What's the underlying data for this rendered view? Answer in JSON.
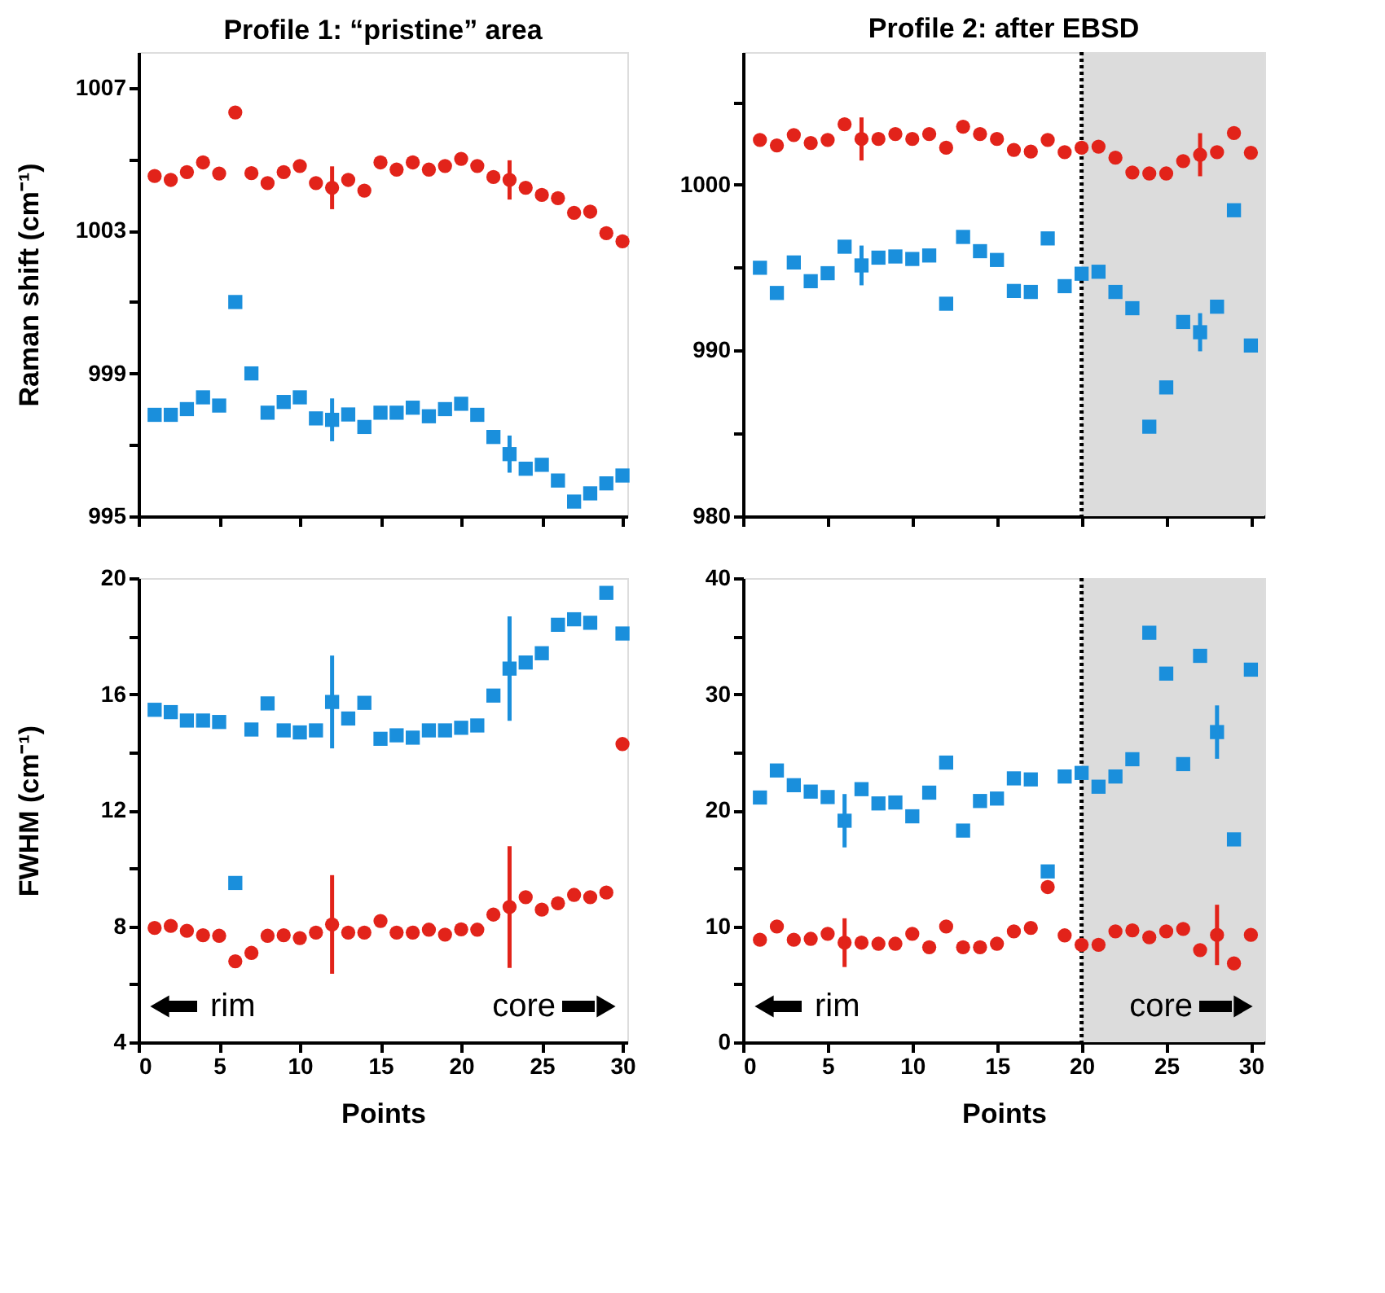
{
  "chart_data": [
    {
      "type": "scatter",
      "title": "Profile 1: “pristine” area",
      "ylabel": "Raman shift (cm⁻¹)",
      "x": [
        1,
        2,
        3,
        4,
        5,
        6,
        7,
        8,
        9,
        10,
        11,
        12,
        13,
        14,
        15,
        16,
        17,
        18,
        19,
        20,
        21,
        22,
        23,
        24,
        25,
        26,
        27,
        28,
        29,
        30
      ],
      "series": [
        {
          "color": "#e2231a",
          "marker": "circle",
          "values": [
            1004.53,
            1004.42,
            1004.64,
            1004.91,
            1004.6,
            1006.31,
            1004.61,
            1004.33,
            1004.64,
            1004.81,
            1004.33,
            1004.2,
            1004.42,
            1004.12,
            1004.91,
            1004.71,
            1004.91,
            1004.71,
            1004.81,
            1005.01,
            1004.81,
            1004.5,
            1004.42,
            1004.2,
            1004.0,
            1003.91,
            1003.5,
            1003.53,
            1002.93,
            1002.7
          ],
          "errors": [
            null,
            null,
            null,
            null,
            null,
            null,
            null,
            null,
            null,
            null,
            null,
            0.6,
            null,
            null,
            null,
            null,
            null,
            null,
            null,
            null,
            null,
            null,
            0.55,
            null,
            null,
            null,
            null,
            null,
            null,
            null
          ]
        },
        {
          "color": "#1a8fdc",
          "marker": "square",
          "values": [
            997.84,
            997.84,
            998.0,
            998.33,
            998.1,
            1001.0,
            999.0,
            997.9,
            998.2,
            998.33,
            997.74,
            997.7,
            997.85,
            997.5,
            997.9,
            997.9,
            998.04,
            997.8,
            998.0,
            998.15,
            997.84,
            997.22,
            996.74,
            996.33,
            996.44,
            996.0,
            995.41,
            995.64,
            995.92,
            996.14
          ],
          "errors": [
            null,
            null,
            null,
            null,
            null,
            null,
            null,
            null,
            null,
            null,
            null,
            0.6,
            null,
            null,
            null,
            null,
            null,
            null,
            null,
            null,
            null,
            null,
            0.52,
            null,
            null,
            null,
            null,
            null,
            null,
            null
          ]
        }
      ],
      "xlim": [
        0,
        30.3
      ],
      "xticks": [
        0,
        5,
        10,
        15,
        20,
        25,
        30
      ],
      "ylim": [
        995,
        1008
      ],
      "yticks": [
        995,
        {
          "value": 997,
          "label": null
        },
        999,
        {
          "value": 1001,
          "label": null
        },
        1003,
        {
          "value": 1005,
          "label": null
        },
        1007
      ],
      "tick_labels": "y",
      "grid": false
    },
    {
      "type": "scatter",
      "title": "Profile 2: after EBSD",
      "x": [
        1,
        2,
        3,
        4,
        5,
        6,
        7,
        8,
        9,
        10,
        11,
        12,
        13,
        14,
        15,
        16,
        17,
        18,
        19,
        20,
        21,
        22,
        23,
        24,
        25,
        26,
        27,
        28,
        29,
        30
      ],
      "series": [
        {
          "color": "#e2231a",
          "marker": "circle",
          "values": [
            1002.7,
            1002.37,
            1003.0,
            1002.52,
            1002.7,
            1003.65,
            1002.76,
            1002.76,
            1003.06,
            1002.76,
            1003.06,
            1002.23,
            1003.5,
            1003.06,
            1002.76,
            1002.1,
            1002.0,
            1002.7,
            1001.96,
            1002.23,
            1002.3,
            1001.63,
            1000.74,
            1000.68,
            1000.68,
            1001.42,
            1001.81,
            1001.96,
            1003.12,
            1001.93
          ],
          "errors": [
            null,
            null,
            null,
            null,
            null,
            null,
            1.3,
            null,
            null,
            null,
            null,
            null,
            null,
            null,
            null,
            null,
            null,
            null,
            null,
            null,
            null,
            null,
            null,
            null,
            null,
            null,
            1.3,
            null,
            null,
            null
          ]
        },
        {
          "color": "#1a8fdc",
          "marker": "square",
          "values": [
            994.99,
            993.47,
            995.31,
            994.18,
            994.66,
            996.26,
            995.13,
            995.6,
            995.67,
            995.52,
            995.73,
            992.82,
            996.85,
            995.99,
            995.46,
            993.59,
            993.53,
            996.76,
            993.88,
            994.63,
            994.75,
            993.53,
            992.55,
            985.4,
            987.77,
            991.72,
            991.1,
            992.64,
            998.46,
            990.3
          ],
          "errors": [
            null,
            null,
            null,
            null,
            null,
            null,
            1.2,
            null,
            null,
            null,
            null,
            null,
            null,
            null,
            null,
            null,
            null,
            null,
            null,
            null,
            null,
            null,
            null,
            null,
            null,
            null,
            1.15,
            null,
            null,
            null
          ]
        }
      ],
      "xlim": [
        0,
        30.8
      ],
      "xticks": [
        0,
        5,
        10,
        15,
        20,
        25,
        30
      ],
      "ylim": [
        980,
        1008
      ],
      "yticks": [
        980,
        {
          "value": 985,
          "label": null
        },
        990,
        {
          "value": 995,
          "label": null
        },
        1000,
        {
          "value": 1005,
          "label": null
        }
      ],
      "tick_labels": "y",
      "grid": false,
      "ref_lines": [
        {
          "axis": "x",
          "value": 20,
          "color": "#000000",
          "line_style": "dotted"
        }
      ],
      "bands": [
        {
          "axis": "x",
          "from": 20,
          "to": 30.8,
          "color": "#dcdcdc"
        }
      ]
    },
    {
      "type": "scatter",
      "xlabel": "Points",
      "ylabel": "FWHM (cm⁻¹)",
      "x": [
        1,
        2,
        3,
        4,
        5,
        6,
        7,
        8,
        9,
        10,
        11,
        12,
        13,
        14,
        15,
        16,
        17,
        18,
        19,
        20,
        21,
        22,
        23,
        24,
        25,
        26,
        27,
        28,
        29,
        30
      ],
      "series": [
        {
          "color": "#e2231a",
          "marker": "circle",
          "values": [
            7.94,
            8.01,
            7.84,
            7.69,
            7.67,
            6.79,
            7.08,
            7.67,
            7.69,
            7.59,
            7.78,
            8.06,
            7.78,
            7.78,
            8.18,
            7.78,
            7.78,
            7.88,
            7.71,
            7.89,
            7.88,
            8.4,
            8.66,
            9.0,
            8.57,
            8.79,
            9.08,
            9.0,
            9.16,
            14.28
          ],
          "errors": [
            null,
            null,
            null,
            null,
            null,
            null,
            null,
            null,
            null,
            null,
            null,
            1.7,
            null,
            null,
            null,
            null,
            null,
            null,
            null,
            null,
            null,
            null,
            2.1,
            null,
            null,
            null,
            null,
            null,
            null,
            null
          ]
        },
        {
          "color": "#1a8fdc",
          "marker": "square",
          "values": [
            15.46,
            15.38,
            15.09,
            15.09,
            15.04,
            9.49,
            14.78,
            15.68,
            14.75,
            14.68,
            14.75,
            15.73,
            15.16,
            15.7,
            14.46,
            14.58,
            14.5,
            14.75,
            14.75,
            14.84,
            14.92,
            15.95,
            16.88,
            17.09,
            17.41,
            18.39,
            18.58,
            18.46,
            19.49,
            18.09
          ],
          "errors": [
            null,
            null,
            null,
            null,
            null,
            null,
            null,
            null,
            null,
            null,
            null,
            1.6,
            null,
            null,
            null,
            null,
            null,
            null,
            null,
            null,
            null,
            null,
            1.8,
            null,
            null,
            null,
            null,
            null,
            null,
            null
          ]
        }
      ],
      "xlim": [
        0,
        30.3
      ],
      "xticks": [
        0,
        5,
        10,
        15,
        20,
        25,
        30
      ],
      "ylim": [
        4,
        20
      ],
      "yticks": [
        4,
        {
          "value": 6,
          "label": null
        },
        8,
        {
          "value": 10,
          "label": null
        },
        12,
        {
          "value": 14,
          "label": null
        },
        16,
        {
          "value": 18,
          "label": null
        },
        20
      ],
      "grid": false,
      "annotations": [
        "rim",
        "core"
      ]
    },
    {
      "type": "scatter",
      "xlabel": "Points",
      "x": [
        1,
        2,
        3,
        4,
        5,
        6,
        7,
        8,
        9,
        10,
        11,
        12,
        13,
        14,
        15,
        16,
        17,
        18,
        19,
        20,
        21,
        22,
        23,
        24,
        25,
        26,
        27,
        28,
        29,
        30
      ],
      "series": [
        {
          "color": "#e2231a",
          "marker": "circle",
          "values": [
            8.83,
            9.97,
            8.83,
            8.91,
            9.34,
            8.58,
            8.58,
            8.49,
            8.49,
            9.34,
            8.19,
            9.97,
            8.19,
            8.19,
            8.49,
            9.55,
            9.85,
            13.37,
            9.21,
            8.4,
            8.4,
            9.55,
            9.64,
            9.04,
            9.55,
            9.76,
            7.94,
            9.25,
            6.79,
            9.25
          ],
          "errors": [
            null,
            null,
            null,
            null,
            null,
            2.1,
            null,
            null,
            null,
            null,
            null,
            null,
            null,
            null,
            null,
            null,
            null,
            null,
            null,
            null,
            null,
            null,
            null,
            null,
            null,
            null,
            null,
            2.6,
            null,
            null
          ]
        },
        {
          "color": "#1a8fdc",
          "marker": "square",
          "values": [
            21.09,
            23.42,
            22.15,
            21.6,
            21.13,
            19.09,
            21.81,
            20.58,
            20.66,
            19.47,
            21.51,
            24.1,
            18.24,
            20.79,
            21.0,
            22.74,
            22.65,
            14.72,
            22.9,
            23.21,
            22.02,
            22.9,
            24.39,
            35.29,
            31.77,
            23.97,
            33.3,
            26.73,
            17.48,
            32.11
          ],
          "errors": [
            null,
            null,
            null,
            null,
            null,
            2.3,
            null,
            null,
            null,
            null,
            null,
            null,
            null,
            null,
            null,
            null,
            null,
            null,
            null,
            null,
            null,
            null,
            null,
            null,
            null,
            null,
            null,
            2.3,
            null,
            null
          ]
        }
      ],
      "xlim": [
        0,
        30.8
      ],
      "xticks": [
        0,
        5,
        10,
        15,
        20,
        25,
        30
      ],
      "ylim": [
        0,
        40
      ],
      "yticks": [
        0,
        {
          "value": 5,
          "label": null
        },
        10,
        {
          "value": 15,
          "label": null
        },
        20,
        {
          "value": 25,
          "label": null
        },
        30,
        {
          "value": 35,
          "label": null
        },
        40
      ],
      "grid": false,
      "ref_lines": [
        {
          "axis": "x",
          "value": 20,
          "color": "#000000",
          "line_style": "dotted"
        }
      ],
      "bands": [
        {
          "axis": "x",
          "from": 20,
          "to": 30.8,
          "color": "#dcdcdc"
        }
      ],
      "annotations": [
        "rim",
        "core"
      ]
    }
  ]
}
